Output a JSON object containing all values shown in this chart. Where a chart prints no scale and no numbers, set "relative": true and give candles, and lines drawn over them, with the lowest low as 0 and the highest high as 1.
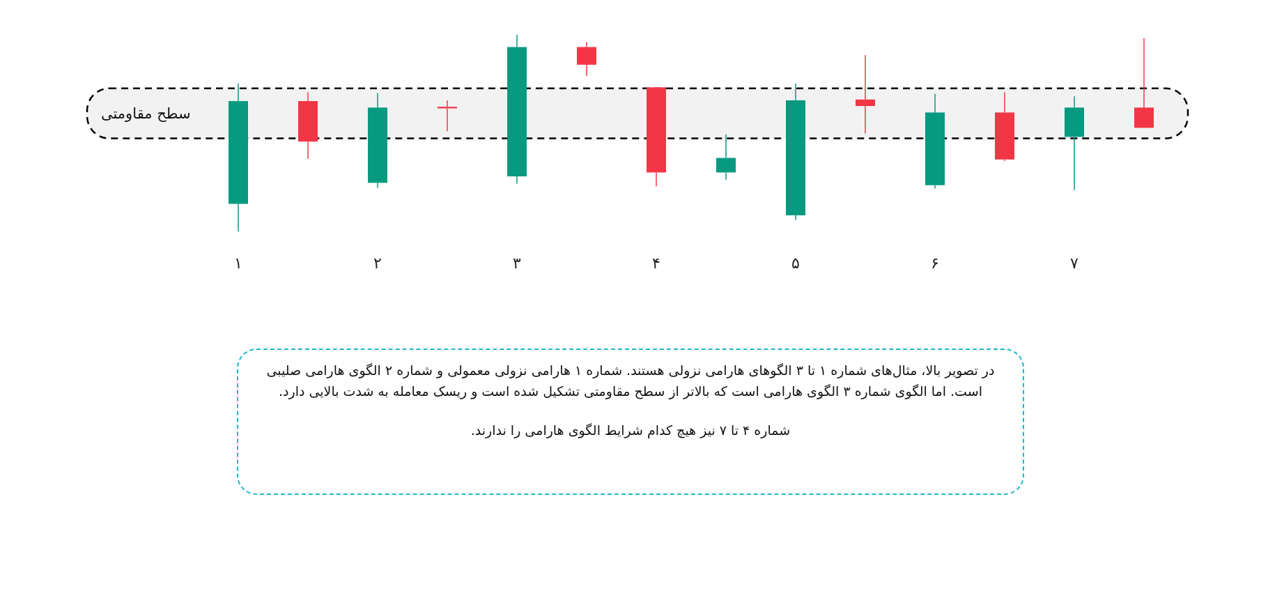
{
  "chart_data": {
    "type": "candlestick",
    "relative": true,
    "categories": [
      "۱",
      null,
      "۲",
      null,
      "۳",
      null,
      "۴",
      null,
      "۵",
      null,
      "۶",
      null,
      "۷",
      null
    ],
    "ohlc": [
      [
        0.14,
        0.753,
        0,
        0.663
      ],
      [
        0.663,
        0.708,
        0.37,
        0.457
      ],
      [
        0.247,
        0.704,
        0.222,
        0.63
      ],
      [
        0.634,
        0.667,
        0.51,
        0.626
      ],
      [
        0.28,
        1,
        0.243,
        0.938
      ],
      [
        0.938,
        0.963,
        0.79,
        0.848
      ],
      [
        0.733,
        0.733,
        0.23,
        0.3
      ],
      [
        0.3,
        0.494,
        0.263,
        0.374
      ],
      [
        0.082,
        0.753,
        0.058,
        0.667
      ],
      [
        0.671,
        0.897,
        0.498,
        0.638
      ],
      [
        0.235,
        0.7,
        0.218,
        0.605
      ],
      [
        0.605,
        0.708,
        0.358,
        0.366
      ],
      [
        0.481,
        0.687,
        0.21,
        0.63
      ],
      [
        0.63,
        0.984,
        0.527,
        0.527
      ]
    ],
    "colors": [
      "#089981",
      "#f23645",
      "#089981",
      "#f23645",
      "#089981",
      "#f23645",
      "#f23645",
      "#089981",
      "#089981",
      "#f23645",
      "#089981",
      "#f23645",
      "#089981",
      "#f23645"
    ],
    "bands": [
      {
        "axis": "y",
        "from": 0.473,
        "to": 0.728,
        "label": "سطح مقاومتی",
        "color": "#000000"
      }
    ],
    "annotations": [
      "در تصویر بالا، مثال‌های شماره ۱ تا ۳ الگوهای هارامی نزولی هستند. شماره ۱ هارامی نزولی معمولی و شماره ۲ الگوی هارامی صلیبی است. اما الگوی شماره ۳ الگوی هارامی است که بالاتر از سطح مقاومتی تشکیل شده است و ریسک معامله به شدت بالایی دارد.",
      "شماره ۴ تا ۷ نیز هیچ کدام شرایط الگوی هارامی را ندارند."
    ]
  }
}
